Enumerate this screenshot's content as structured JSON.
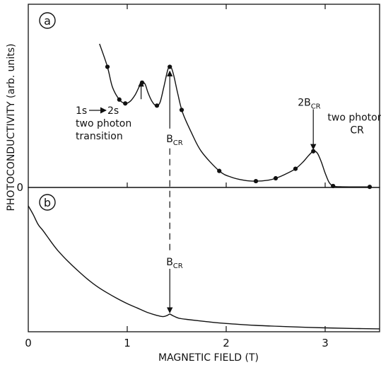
{
  "chart_data": [
    {
      "panel": "a",
      "type": "line",
      "xlabel": "MAGNETIC FIELD (T)",
      "ylabel": "PHOTOCONDUCTIVITY (arb. units)",
      "xlim": [
        0,
        3.55
      ],
      "ylim": [
        0,
        1.0
      ],
      "x_ticks": [
        "0",
        "1",
        "2",
        "3"
      ],
      "y_ticks": [
        "0"
      ],
      "grid": false,
      "series": [
        {
          "curve_x": [
            0.72,
            0.8,
            0.85,
            0.92,
            0.98,
            1.03,
            1.08,
            1.12,
            1.15,
            1.18,
            1.21,
            1.25,
            1.29,
            1.33,
            1.37,
            1.41,
            1.44,
            1.47,
            1.51,
            1.56,
            1.65,
            1.75,
            1.93,
            2.05,
            2.18,
            2.3,
            2.42,
            2.5,
            2.6,
            2.7,
            2.78,
            2.83,
            2.88,
            2.92,
            2.96,
            3.0,
            3.04,
            3.08,
            3.15,
            3.3,
            3.45
          ],
          "curve_y": [
            1.0,
            0.84,
            0.7,
            0.612,
            0.585,
            0.6,
            0.645,
            0.7,
            0.73,
            0.72,
            0.66,
            0.6,
            0.57,
            0.59,
            0.7,
            0.82,
            0.84,
            0.78,
            0.655,
            0.52,
            0.38,
            0.25,
            0.115,
            0.072,
            0.05,
            0.044,
            0.05,
            0.064,
            0.093,
            0.13,
            0.18,
            0.22,
            0.252,
            0.24,
            0.18,
            0.1,
            0.035,
            0.01,
            0.005,
            0.004,
            0.004
          ],
          "points_x": [
            0.8,
            0.92,
            0.98,
            1.15,
            1.3,
            1.43,
            1.55,
            1.93,
            2.3,
            2.5,
            2.7,
            2.88,
            3.08,
            3.45
          ],
          "points_y": [
            0.84,
            0.612,
            0.585,
            0.73,
            0.57,
            0.84,
            0.54,
            0.115,
            0.044,
            0.064,
            0.13,
            0.252,
            0.01,
            0.004
          ]
        }
      ],
      "annotations": [
        {
          "x": 1.14,
          "y": 0.59,
          "lines": [
            "1s",
            "2s",
            "two photon",
            "transition"
          ]
        },
        {
          "x": 1.43,
          "y": 0.41,
          "text": "B",
          "sub": "CR"
        },
        {
          "x": 2.88,
          "y": 0.52,
          "text": "2B",
          "sub": "CR"
        },
        {
          "x": 3.06,
          "y": 0.47,
          "lines": [
            "two photon",
            "CR"
          ]
        }
      ]
    },
    {
      "panel": "b",
      "type": "line",
      "xlim": [
        0,
        3.55
      ],
      "grid": false,
      "series": [
        {
          "x": [
            0.0,
            0.05,
            0.1,
            0.15,
            0.2,
            0.25,
            0.3,
            0.4,
            0.5,
            0.6,
            0.7,
            0.8,
            0.9,
            1.0,
            1.1,
            1.2,
            1.3,
            1.36,
            1.4,
            1.43,
            1.46,
            1.52,
            1.6,
            1.8,
            2.0,
            2.3,
            2.6,
            3.0,
            3.3,
            3.55
          ],
          "y": [
            1.0,
            0.93,
            0.85,
            0.8,
            0.745,
            0.69,
            0.64,
            0.555,
            0.48,
            0.41,
            0.35,
            0.3,
            0.255,
            0.215,
            0.18,
            0.145,
            0.12,
            0.11,
            0.118,
            0.13,
            0.118,
            0.098,
            0.088,
            0.07,
            0.055,
            0.04,
            0.03,
            0.02,
            0.015,
            0.012
          ]
        }
      ],
      "annotations": [
        {
          "x": 1.43,
          "text": "B",
          "sub": "CR"
        }
      ]
    }
  ],
  "panel_labels": {
    "a": "a",
    "b": "b"
  }
}
